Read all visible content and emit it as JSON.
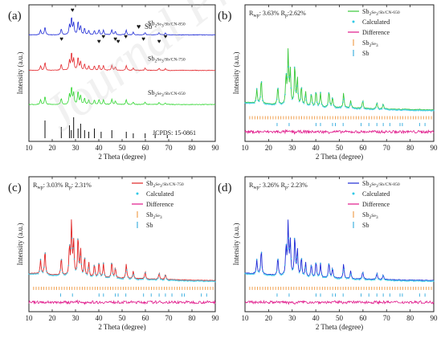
{
  "figure_watermark": "Journal Pre-proof",
  "colors": {
    "sb": "#1f2bd6",
    "cn850": "#1f2bd6",
    "cn750": "#e3262b",
    "cn650": "#2fd62f",
    "jcpds": "#111111",
    "observed_green": "#39c83a",
    "observed_red": "#e02525",
    "observed_blue": "#1f2bd6",
    "calculated": "#31c9e6",
    "difference": "#e0178a",
    "tick_sb2se3": "#f0a050",
    "tick_sb": "#3fb0e0",
    "sb_marker": "#d61fbf"
  },
  "chart_data": [
    {
      "panel": "(a)",
      "type": "line",
      "xlabel": "2 Theta (degree)",
      "ylabel": "Intensity (a.u.)",
      "xlim": [
        10,
        90
      ],
      "xticks": [
        10,
        20,
        30,
        40,
        50,
        60,
        70,
        80,
        90
      ],
      "legend": {
        "symbol": "♥",
        "label": "Sb"
      },
      "series": [
        {
          "name": "Sb2Se3/Sb/CN-850",
          "label_main": "Sb",
          "label_sub1": "2",
          "label_mid": "Se",
          "label_sub2": "3",
          "label_rest": "/Sb/CN-850",
          "color": "#1f2bd6",
          "offset": 0.78
        },
        {
          "name": "Sb2Se3/Sb/CN-750",
          "label_main": "Sb",
          "label_sub1": "2",
          "label_mid": "Se",
          "label_sub2": "3",
          "label_rest": "/Sb/CN-750",
          "color": "#e3262b",
          "offset": 0.52
        },
        {
          "name": "Sb2Se3/Sb/CN-650",
          "label_main": "Sb",
          "label_sub1": "2",
          "label_mid": "Se",
          "label_sub2": "3",
          "label_rest": "/Sb/CN-650",
          "color": "#2fd62f",
          "offset": 0.27
        }
      ],
      "reference": {
        "name": "JCPDS: 15-0861",
        "peaks": [
          16.9,
          23.9,
          27.4,
          28.2,
          29.2,
          31.1,
          32.2,
          33.9,
          35.7,
          38.1,
          41.0,
          45.6,
          51.8,
          54.8,
          59.9,
          64.2,
          69.4
        ]
      },
      "sb_markers": [
        28.7,
        24.0,
        40.1,
        42.0,
        47.1,
        48.3,
        51.6,
        59.2,
        65.9,
        68.6
      ],
      "main_peaks": [
        {
          "x": 15.0,
          "h": 0.22
        },
        {
          "x": 16.9,
          "h": 0.38
        },
        {
          "x": 23.9,
          "h": 0.28
        },
        {
          "x": 27.4,
          "h": 0.45
        },
        {
          "x": 28.3,
          "h": 0.8
        },
        {
          "x": 29.2,
          "h": 0.52
        },
        {
          "x": 31.1,
          "h": 0.62
        },
        {
          "x": 32.2,
          "h": 0.4
        },
        {
          "x": 33.9,
          "h": 0.3
        },
        {
          "x": 35.7,
          "h": 0.22
        },
        {
          "x": 38.1,
          "h": 0.2
        },
        {
          "x": 40.1,
          "h": 0.24
        },
        {
          "x": 42.0,
          "h": 0.22
        },
        {
          "x": 45.6,
          "h": 0.25
        },
        {
          "x": 47.1,
          "h": 0.16
        },
        {
          "x": 51.8,
          "h": 0.22
        },
        {
          "x": 54.8,
          "h": 0.12
        },
        {
          "x": 59.9,
          "h": 0.12
        },
        {
          "x": 65.9,
          "h": 0.1
        },
        {
          "x": 68.6,
          "h": 0.08
        }
      ]
    },
    {
      "panel": "(b)",
      "type": "line",
      "fit_text": "R",
      "rwp_sub": "wp",
      "rwp_val": ": 3.63%",
      "rp_sub": "p",
      "rp_val": ":2.62%",
      "xlabel": "2 Theta (degree)",
      "ylabel": "Intensity (a.u.)",
      "xlim": [
        10,
        90
      ],
      "xticks": [
        10,
        20,
        30,
        40,
        50,
        60,
        70,
        80,
        90
      ],
      "observed_color": "#39c83a",
      "legend": [
        {
          "kind": "line",
          "color": "#39c83a",
          "label": "Sb2Se3/Sb/CN-650"
        },
        {
          "kind": "dot",
          "color": "#31c9e6",
          "label": "Calculated"
        },
        {
          "kind": "line",
          "color": "#e0178a",
          "label": "Difference"
        },
        {
          "kind": "tick",
          "color": "#f0a050",
          "label": "Sb2Se3"
        },
        {
          "kind": "tick",
          "color": "#3fb0e0",
          "label": "Sb"
        }
      ]
    },
    {
      "panel": "(c)",
      "type": "line",
      "fit_text": "R",
      "rwp_sub": "wp",
      "rwp_val": ": 3.03%",
      "rp_sub": "p",
      "rp_val": ": 2.31%",
      "xlabel": "2 Theta (degree)",
      "ylabel": "Intensity (a.u.)",
      "xlim": [
        10,
        90
      ],
      "xticks": [
        10,
        20,
        30,
        40,
        50,
        60,
        70,
        80,
        90
      ],
      "observed_color": "#e02525",
      "legend": [
        {
          "kind": "line",
          "color": "#e02525",
          "label": "Sb2Se3/Sb/CN-750"
        },
        {
          "kind": "dot",
          "color": "#31c9e6",
          "label": "Calculated"
        },
        {
          "kind": "line",
          "color": "#e0178a",
          "label": "Difference"
        },
        {
          "kind": "tick",
          "color": "#f0a050",
          "label": "Sb2Se3"
        },
        {
          "kind": "tick",
          "color": "#3fb0e0",
          "label": "Sb"
        }
      ]
    },
    {
      "panel": "(d)",
      "type": "line",
      "fit_text": "R",
      "rwp_sub": "wp",
      "rwp_val": ": 3.26%",
      "rp_sub": "p",
      "rp_val": ": 2.23%",
      "xlabel": "2 Theta (degree)",
      "ylabel": "Intensity (a.u.)",
      "xlim": [
        10,
        90
      ],
      "xticks": [
        10,
        20,
        30,
        40,
        50,
        60,
        70,
        80,
        90
      ],
      "observed_color": "#1f2bd6",
      "legend": [
        {
          "kind": "line",
          "color": "#1f2bd6",
          "label": "Sb2Se3/Sb/CN-850"
        },
        {
          "kind": "dot",
          "color": "#31c9e6",
          "label": "Calculated"
        },
        {
          "kind": "line",
          "color": "#e0178a",
          "label": "Difference"
        },
        {
          "kind": "tick",
          "color": "#f0a050",
          "label": "Sb2Se3"
        },
        {
          "kind": "tick",
          "color": "#3fb0e0",
          "label": "Sb"
        }
      ]
    }
  ]
}
